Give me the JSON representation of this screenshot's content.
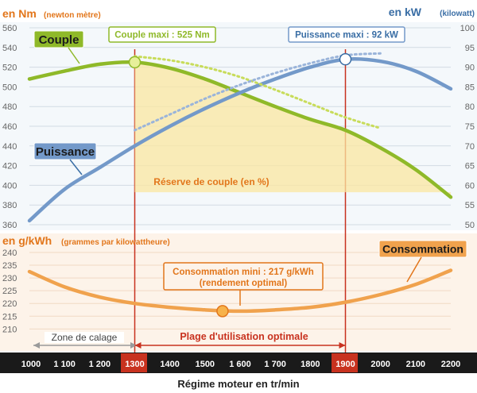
{
  "chart_data": {
    "type": "line",
    "title": "",
    "xlabel": "Régime moteur en tr/min",
    "x_ticks": [
      "1000",
      "1 100",
      "1 200",
      "1300",
      "1400",
      "1500",
      "1 600",
      "1 700",
      "1800",
      "1900",
      "2000",
      "2100",
      "2200"
    ],
    "x_highlight": [
      "1300",
      "1900"
    ],
    "xlim": [
      1000,
      2200
    ],
    "torque_axis": {
      "label": "en Nm",
      "sublabel": "(newton mètre)",
      "ticks": [
        "560",
        "540",
        "520",
        "500",
        "480",
        "460",
        "440",
        "420",
        "400",
        "380",
        "360"
      ],
      "ylim": [
        360,
        560
      ],
      "color": "#e2761b"
    },
    "power_axis": {
      "label": "en kW",
      "sublabel": "(kilowatt)",
      "ticks": [
        "100",
        "95",
        "90",
        "85",
        "80",
        "75",
        "70",
        "65",
        "60",
        "55",
        "50"
      ],
      "ylim": [
        50,
        100
      ],
      "color": "#3a6ea5"
    },
    "consumption_axis": {
      "label": "en g/kWh",
      "sublabel": "(grammes par kilowattheure)",
      "ticks": [
        "240",
        "235",
        "230",
        "225",
        "220",
        "215",
        "210"
      ],
      "ylim": [
        207,
        240
      ],
      "color": "#e2761b"
    },
    "series": [
      {
        "name": "Couple",
        "axis": "torque",
        "color": "#8fb929",
        "x": [
          1000,
          1100,
          1200,
          1300,
          1400,
          1500,
          1600,
          1700,
          1800,
          1900,
          2000,
          2100,
          2200
        ],
        "values": [
          508,
          516,
          523,
          525,
          519,
          508,
          494,
          480,
          467,
          456,
          438,
          416,
          388
        ]
      },
      {
        "name": "Puissance",
        "axis": "power",
        "color": "#7399c9",
        "x": [
          1000,
          1100,
          1200,
          1300,
          1400,
          1500,
          1600,
          1700,
          1800,
          1900,
          2000,
          2100,
          2200
        ],
        "values": [
          51,
          59,
          64.5,
          70,
          75,
          79.5,
          83.5,
          87,
          90,
          92,
          91.5,
          89,
          84.5
        ]
      },
      {
        "name": "Consommation",
        "axis": "consumption",
        "color": "#f0a24d",
        "x": [
          1000,
          1100,
          1200,
          1300,
          1400,
          1500,
          1600,
          1700,
          1800,
          1900,
          2000,
          2100,
          2200
        ],
        "values": [
          232.5,
          226.5,
          222.5,
          220,
          218.5,
          217.5,
          217,
          217.5,
          218.5,
          220.5,
          223.5,
          227.5,
          233
        ]
      },
      {
        "name": "Couple (pointillés)",
        "axis": "torque",
        "color": "#c8dc5a",
        "dashed": true,
        "x": [
          1300,
          1400,
          1500,
          1600,
          1700,
          1800,
          1900,
          2000
        ],
        "values": [
          531,
          527,
          520,
          510,
          497,
          483,
          469,
          458
        ]
      },
      {
        "name": "Puissance (pointillés)",
        "axis": "power",
        "color": "#9ab4da",
        "dashed": true,
        "x": [
          1300,
          1400,
          1500,
          1600,
          1700,
          1800,
          1900,
          2000
        ],
        "values": [
          74,
          78,
          82,
          85.5,
          88.5,
          91,
          93,
          93.5
        ]
      }
    ],
    "annotations": {
      "torque_max": "Couple maxi : 525 Nm",
      "power_max": "Puissance maxi : 92 kW",
      "consumption_min_line1": "Consommation mini : 217 g/kWh",
      "consumption_min_line2": "(rendement optimal)",
      "torque_reserve": "Réserve de couple (en %)",
      "stall_zone": "Zone de calage",
      "usage_range": "Plage d'utilisation optimale"
    },
    "markers": [
      {
        "name": "torque-max",
        "axis": "torque",
        "x": 1300,
        "y": 525
      },
      {
        "name": "power-max",
        "axis": "power",
        "x": 1900,
        "y": 92
      },
      {
        "name": "consumption-min",
        "axis": "consumption",
        "x": 1550,
        "y": 217
      }
    ],
    "reference_lines_x": [
      1300,
      1900
    ],
    "grid": true,
    "legend": "inline labels"
  }
}
